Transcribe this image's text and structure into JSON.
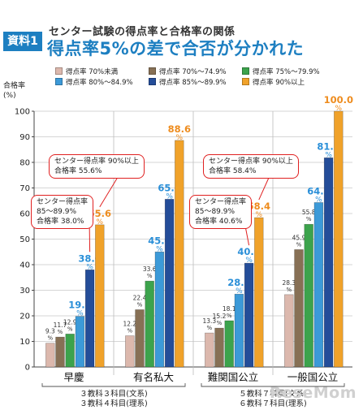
{
  "header": {
    "badge": "資料1",
    "supertitle": "センター試験の得点率と合格率の関係",
    "title": "得点率5%の差で合否が分かれた"
  },
  "axis": {
    "ylabel_line1": "合格率",
    "ylabel_line2": "(%)"
  },
  "callouts": [
    {
      "text": "センター得点率 90%以上\n合格率 55.6%"
    },
    {
      "text": "センター得点率\n85～89.9%\n合格率 38.0%"
    },
    {
      "text": "センター得点率 90%以上\n合格率 58.4%"
    },
    {
      "text": "センター得点率\n85～89.9%\n合格率 40.6%"
    }
  ],
  "watermark": "ReseMom",
  "colors": {
    "s1": "#dcb8ad",
    "s2": "#877055",
    "s3": "#3ca34c",
    "s4": "#3c9ad8",
    "s5": "#244d99",
    "s6": "#f0a22a",
    "label_small": "#333333",
    "label_big_blue": "#2a8fd8",
    "label_big_orange": "#ee8c1e",
    "callout_border": "#e02020",
    "badge": "#1d7fc1"
  },
  "chart_data": {
    "type": "bar",
    "ylim": [
      0,
      100
    ],
    "yticks": [
      0,
      10,
      20,
      30,
      40,
      50,
      60,
      70,
      80,
      90,
      100
    ],
    "ylabel": "合格率 (%)",
    "grid": true,
    "legend_position": "top",
    "categories": [
      "早慶",
      "有名私大",
      "難関国公立",
      "一般国公立"
    ],
    "category_groups": [
      {
        "lines": [
          "３教科３科目(文系)",
          "３教科４科目(理系)"
        ]
      },
      {
        "lines": [
          "５教科７科目(文系)",
          "６教科７科目(理系)"
        ]
      }
    ],
    "series": [
      {
        "name": "得点率 70%未満",
        "values": [
          9.3,
          12.2,
          13.3,
          28.3
        ]
      },
      {
        "name": "得点率 70%～74.9%",
        "values": [
          11.7,
          22.4,
          15.2,
          45.9
        ]
      },
      {
        "name": "得点率 75%～79.9%",
        "values": [
          12.9,
          33.6,
          18.1,
          55.8
        ]
      },
      {
        "name": "得点率 80%～84.9%",
        "values": [
          19.8,
          45.0,
          28.5,
          64.3
        ]
      },
      {
        "name": "得点率 85%～89.9%",
        "values": [
          38.0,
          65.6,
          40.6,
          81.8
        ]
      },
      {
        "name": "得点率 90%以上",
        "values": [
          55.6,
          88.6,
          58.4,
          100.0
        ]
      }
    ]
  }
}
